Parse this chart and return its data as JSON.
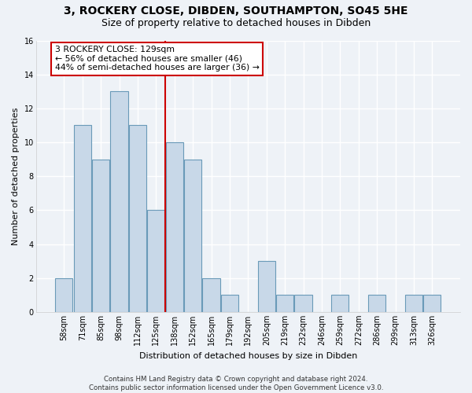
{
  "title1": "3, ROCKERY CLOSE, DIBDEN, SOUTHAMPTON, SO45 5HE",
  "title2": "Size of property relative to detached houses in Dibden",
  "xlabel": "Distribution of detached houses by size in Dibden",
  "ylabel": "Number of detached properties",
  "bin_labels": [
    "58sqm",
    "71sqm",
    "85sqm",
    "98sqm",
    "112sqm",
    "125sqm",
    "138sqm",
    "152sqm",
    "165sqm",
    "179sqm",
    "192sqm",
    "205sqm",
    "219sqm",
    "232sqm",
    "246sqm",
    "259sqm",
    "272sqm",
    "286sqm",
    "299sqm",
    "313sqm",
    "326sqm"
  ],
  "bar_values": [
    2,
    11,
    9,
    13,
    11,
    6,
    10,
    9,
    2,
    1,
    0,
    3,
    1,
    1,
    0,
    1,
    0,
    1,
    0,
    1,
    1
  ],
  "bar_color": "#c8d8e8",
  "bar_edge_color": "#6a9ab8",
  "vline_color": "#cc0000",
  "annotation_text": "3 ROCKERY CLOSE: 129sqm\n← 56% of detached houses are smaller (46)\n44% of semi-detached houses are larger (36) →",
  "footer": "Contains HM Land Registry data © Crown copyright and database right 2024.\nContains public sector information licensed under the Open Government Licence v3.0.",
  "ylim": [
    0,
    16
  ],
  "yticks": [
    0,
    2,
    4,
    6,
    8,
    10,
    12,
    14,
    16
  ],
  "background_color": "#eef2f7",
  "grid_color": "#ffffff",
  "title1_fontsize": 10,
  "title2_fontsize": 9,
  "ylabel_fontsize": 8,
  "xlabel_fontsize": 8,
  "tick_fontsize": 7,
  "annot_fontsize": 7.8,
  "footer_fontsize": 6.2
}
